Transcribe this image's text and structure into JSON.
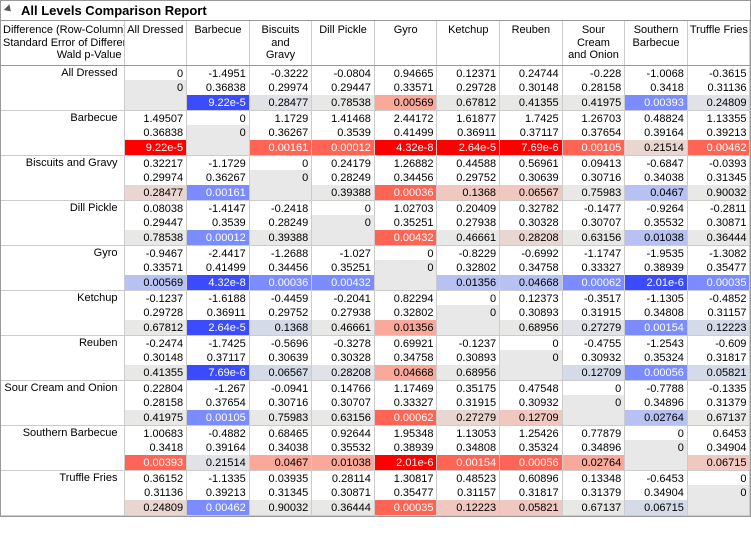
{
  "title": "All Levels Comparison Report",
  "header_lines": [
    "Difference (Row-Column)",
    "Standard Error of Difference",
    "Wald p-Value"
  ],
  "columns": [
    "All Dressed",
    "Barbecue",
    "Biscuits and Gravy",
    "Dill Pickle",
    "Gyro",
    "Ketchup",
    "Reuben",
    "Sour Cream and Onion",
    "Southern Barbecue",
    "Truffle Fries"
  ],
  "column_display": [
    "All Dressed",
    "Barbecue",
    "Biscuits<br>and<br>Gravy",
    "Dill Pickle",
    "Gyro",
    "Ketchup",
    "Reuben",
    "Sour<br>Cream<br>and Onion",
    "Southern<br>Barbecue",
    "Truffle Fries"
  ],
  "rows": [
    "All Dressed",
    "Barbecue",
    "Biscuits and Gravy",
    "Dill Pickle",
    "Gyro",
    "Ketchup",
    "Reuben",
    "Sour Cream and Onion",
    "Southern Barbecue",
    "Truffle Fries"
  ],
  "diff": [
    [
      "0",
      "-1.4951",
      "-0.3222",
      "-0.0804",
      "0.94665",
      "0.12371",
      "0.24744",
      "-0.228",
      "-1.0068",
      "-0.3615"
    ],
    [
      "1.49507",
      "0",
      "1.1729",
      "1.41468",
      "2.44172",
      "1.61877",
      "1.7425",
      "1.26703",
      "0.48824",
      "1.13355"
    ],
    [
      "0.32217",
      "-1.1729",
      "0",
      "0.24179",
      "1.26882",
      "0.44588",
      "0.56961",
      "0.09413",
      "-0.6847",
      "-0.0393"
    ],
    [
      "0.08038",
      "-1.4147",
      "-0.2418",
      "0",
      "1.02703",
      "0.20409",
      "0.32782",
      "-0.1477",
      "-0.9264",
      "-0.2811"
    ],
    [
      "-0.9467",
      "-2.4417",
      "-1.2688",
      "-1.027",
      "0",
      "-0.8229",
      "-0.6992",
      "-1.1747",
      "-1.9535",
      "-1.3082"
    ],
    [
      "-0.1237",
      "-1.6188",
      "-0.4459",
      "-0.2041",
      "0.82294",
      "0",
      "0.12373",
      "-0.3517",
      "-1.1305",
      "-0.4852"
    ],
    [
      "-0.2474",
      "-1.7425",
      "-0.5696",
      "-0.3278",
      "0.69921",
      "-0.1237",
      "0",
      "-0.4755",
      "-1.2543",
      "-0.609"
    ],
    [
      "0.22804",
      "-1.267",
      "-0.0941",
      "0.14766",
      "1.17469",
      "0.35175",
      "0.47548",
      "0",
      "-0.7788",
      "-0.1335"
    ],
    [
      "1.00683",
      "-0.4882",
      "0.68465",
      "0.92644",
      "1.95348",
      "1.13053",
      "1.25426",
      "0.77879",
      "0",
      "0.6453"
    ],
    [
      "0.36152",
      "-1.1335",
      "0.03935",
      "0.28114",
      "1.30817",
      "0.48523",
      "0.60896",
      "0.13348",
      "-0.6453",
      "0"
    ]
  ],
  "se": [
    [
      "0",
      "0.36838",
      "0.29974",
      "0.29447",
      "0.33571",
      "0.29728",
      "0.30148",
      "0.28158",
      "0.3418",
      "0.31136"
    ],
    [
      "0.36838",
      "0",
      "0.36267",
      "0.3539",
      "0.41499",
      "0.36911",
      "0.37117",
      "0.37654",
      "0.39164",
      "0.39213"
    ],
    [
      "0.29974",
      "0.36267",
      "0",
      "0.28249",
      "0.34456",
      "0.29752",
      "0.30639",
      "0.30716",
      "0.34038",
      "0.31345"
    ],
    [
      "0.29447",
      "0.3539",
      "0.28249",
      "0",
      "0.35251",
      "0.27938",
      "0.30328",
      "0.30707",
      "0.35532",
      "0.30871"
    ],
    [
      "0.33571",
      "0.41499",
      "0.34456",
      "0.35251",
      "0",
      "0.32802",
      "0.34758",
      "0.33327",
      "0.38939",
      "0.35477"
    ],
    [
      "0.29728",
      "0.36911",
      "0.29752",
      "0.27938",
      "0.32802",
      "0",
      "0.30893",
      "0.31915",
      "0.34808",
      "0.31157"
    ],
    [
      "0.30148",
      "0.37117",
      "0.30639",
      "0.30328",
      "0.34758",
      "0.30893",
      "0",
      "0.30932",
      "0.35324",
      "0.31817"
    ],
    [
      "0.28158",
      "0.37654",
      "0.30716",
      "0.30707",
      "0.33327",
      "0.31915",
      "0.30932",
      "0",
      "0.34896",
      "0.31379"
    ],
    [
      "0.3418",
      "0.39164",
      "0.34038",
      "0.35532",
      "0.38939",
      "0.34808",
      "0.35324",
      "0.34896",
      "0",
      "0.34904"
    ],
    [
      "0.31136",
      "0.39213",
      "0.31345",
      "0.30871",
      "0.35477",
      "0.31157",
      "0.31817",
      "0.31379",
      "0.34904",
      "0"
    ]
  ],
  "pval": [
    [
      "",
      "9.22e-5",
      "0.28477",
      "0.78538",
      "0.00569",
      "0.67812",
      "0.41355",
      "0.41975",
      "0.00393",
      "0.24809"
    ],
    [
      "9.22e-5",
      "",
      "0.00161",
      "0.00012",
      "4.32e-8",
      "2.64e-5",
      "7.69e-6",
      "0.00105",
      "0.21514",
      "0.00462"
    ],
    [
      "0.28477",
      "0.00161",
      "",
      "0.39388",
      "0.00036",
      "0.1368",
      "0.06567",
      "0.75983",
      "0.0467",
      "0.90032"
    ],
    [
      "0.78538",
      "0.00012",
      "0.39388",
      "",
      "0.00432",
      "0.46661",
      "0.28208",
      "0.63156",
      "0.01038",
      "0.36444"
    ],
    [
      "0.00569",
      "4.32e-8",
      "0.00036",
      "0.00432",
      "",
      "0.01356",
      "0.04668",
      "0.00062",
      "2.01e-6",
      "0.00035"
    ],
    [
      "0.67812",
      "2.64e-5",
      "0.1368",
      "0.46661",
      "0.01356",
      "",
      "0.68956",
      "0.27279",
      "0.00154",
      "0.12223"
    ],
    [
      "0.41355",
      "7.69e-6",
      "0.06567",
      "0.28208",
      "0.04668",
      "0.68956",
      "",
      "0.12709",
      "0.00056",
      "0.05821"
    ],
    [
      "0.41975",
      "0.00105",
      "0.75983",
      "0.63156",
      "0.00062",
      "0.27279",
      "0.12709",
      "",
      "0.02764",
      "0.67137"
    ],
    [
      "0.00393",
      "0.21514",
      "0.0467",
      "0.01038",
      "2.01e-6",
      "0.00154",
      "0.00056",
      "0.02764",
      "",
      "0.06715"
    ],
    [
      "0.24809",
      "0.00462",
      "0.90032",
      "0.36444",
      "0.00035",
      "0.12223",
      "0.05821",
      "0.67137",
      "0.06715",
      ""
    ]
  ],
  "colors": {
    "diag": "#e8e8e8",
    "red_strong": "#ff0000",
    "red_mid": "#ff6454",
    "red_light": "#f9a89a",
    "red_vlight": "#f0c8c0",
    "red_faint": "#ead6d0",
    "blue_strong": "#3b4cff",
    "blue_mid": "#7a8cff",
    "blue_light": "#b8c2f2",
    "blue_vlight": "#d4dae8",
    "blue_faint": "#e0e2e8",
    "neutral": "#e8e8e6"
  }
}
